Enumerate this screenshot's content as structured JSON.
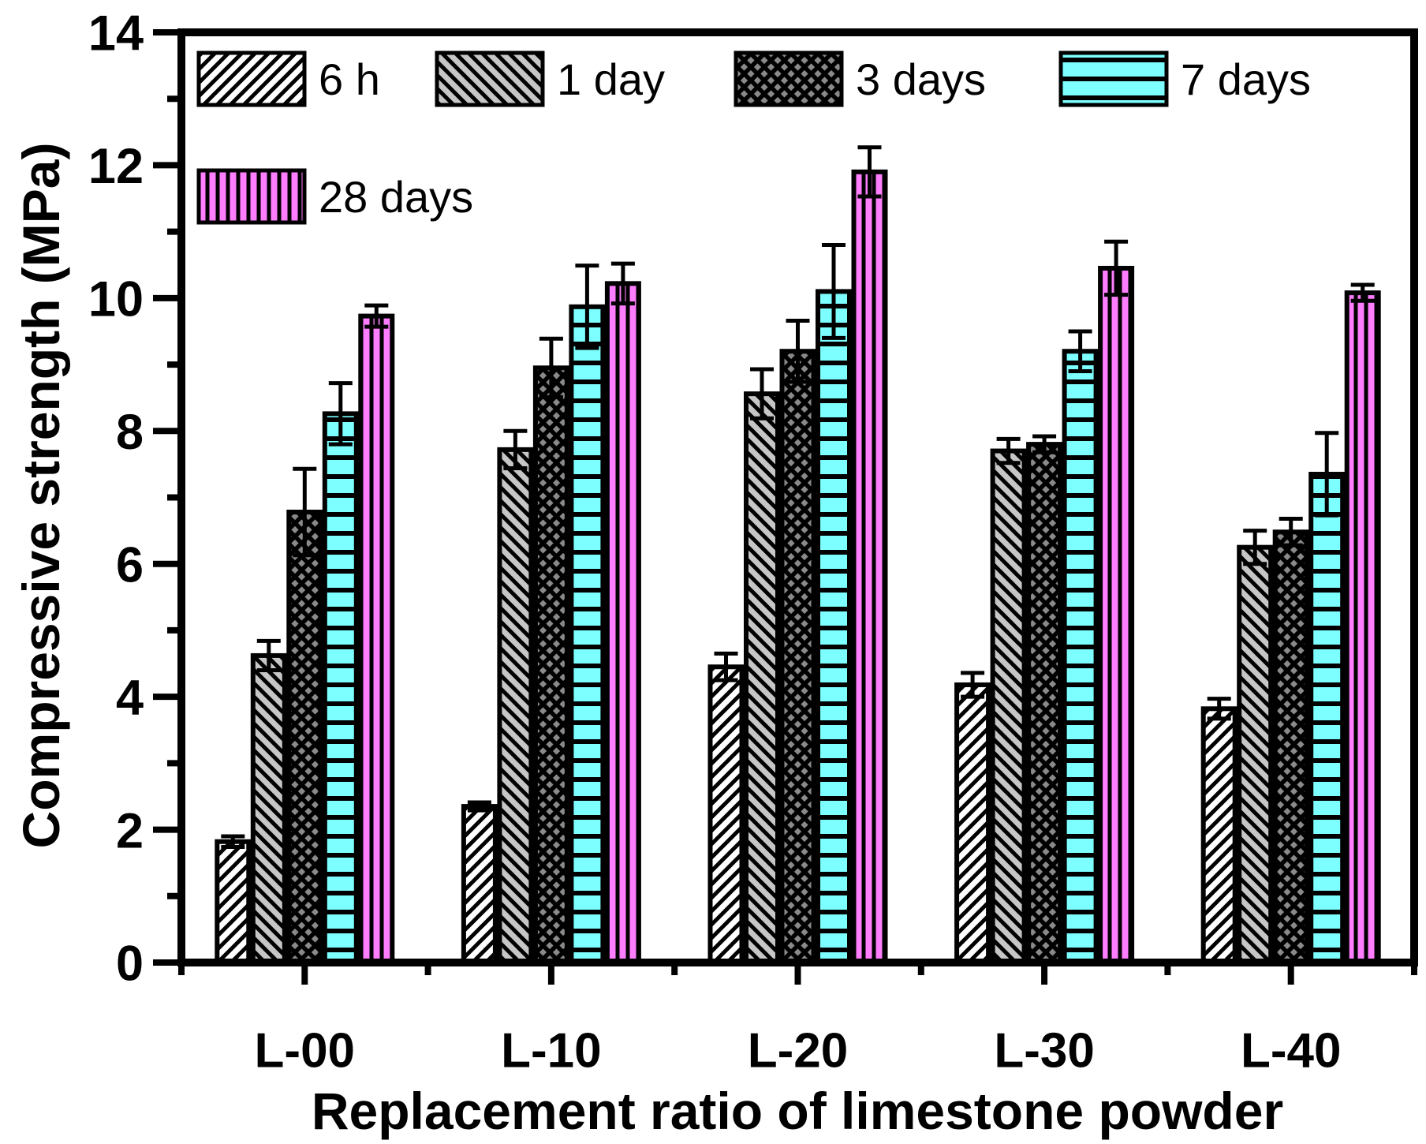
{
  "chart_data": {
    "type": "bar",
    "title": "",
    "xlabel": "Replacement ratio of limestone powder",
    "ylabel": "Compressive strength (MPa)",
    "ylim": [
      0,
      14
    ],
    "ytick_step": 2,
    "ytick_labels": [
      "0",
      "2",
      "4",
      "6",
      "8",
      "10",
      "12",
      "14"
    ],
    "grid": "off",
    "legend_position": "inside-top-left",
    "categories": [
      "L-00",
      "L-10",
      "L-20",
      "L-30",
      "L-40"
    ],
    "series": [
      {
        "name": "6 h",
        "pattern": "diag-up",
        "fill": "#ffffff",
        "hatch_color": "#000000",
        "values": [
          1.82,
          2.35,
          4.45,
          4.18,
          3.82
        ],
        "errors": [
          0.08,
          0.06,
          0.2,
          0.18,
          0.15
        ]
      },
      {
        "name": "1 day",
        "pattern": "diag-down",
        "fill": "#c6c6c6",
        "hatch_color": "#000000",
        "values": [
          4.62,
          7.72,
          8.56,
          7.7,
          6.25
        ],
        "errors": [
          0.22,
          0.28,
          0.37,
          0.18,
          0.25
        ]
      },
      {
        "name": "3 days",
        "pattern": "crosshatch",
        "fill": "#8a8a8a",
        "hatch_color": "#000000",
        "values": [
          6.78,
          8.95,
          9.2,
          7.8,
          6.48
        ],
        "errors": [
          0.65,
          0.44,
          0.46,
          0.12,
          0.2
        ]
      },
      {
        "name": "7 days",
        "pattern": "horizontal",
        "fill": "#7dffff",
        "hatch_color": "#000000",
        "values": [
          8.26,
          9.87,
          10.1,
          9.2,
          7.35
        ],
        "errors": [
          0.46,
          0.62,
          0.7,
          0.3,
          0.62
        ]
      },
      {
        "name": "28 days",
        "pattern": "vertical",
        "fill": "#ff7dff",
        "hatch_color": "#000000",
        "values": [
          9.73,
          10.22,
          11.9,
          10.45,
          10.08
        ],
        "errors": [
          0.16,
          0.3,
          0.37,
          0.4,
          0.12
        ]
      }
    ]
  }
}
